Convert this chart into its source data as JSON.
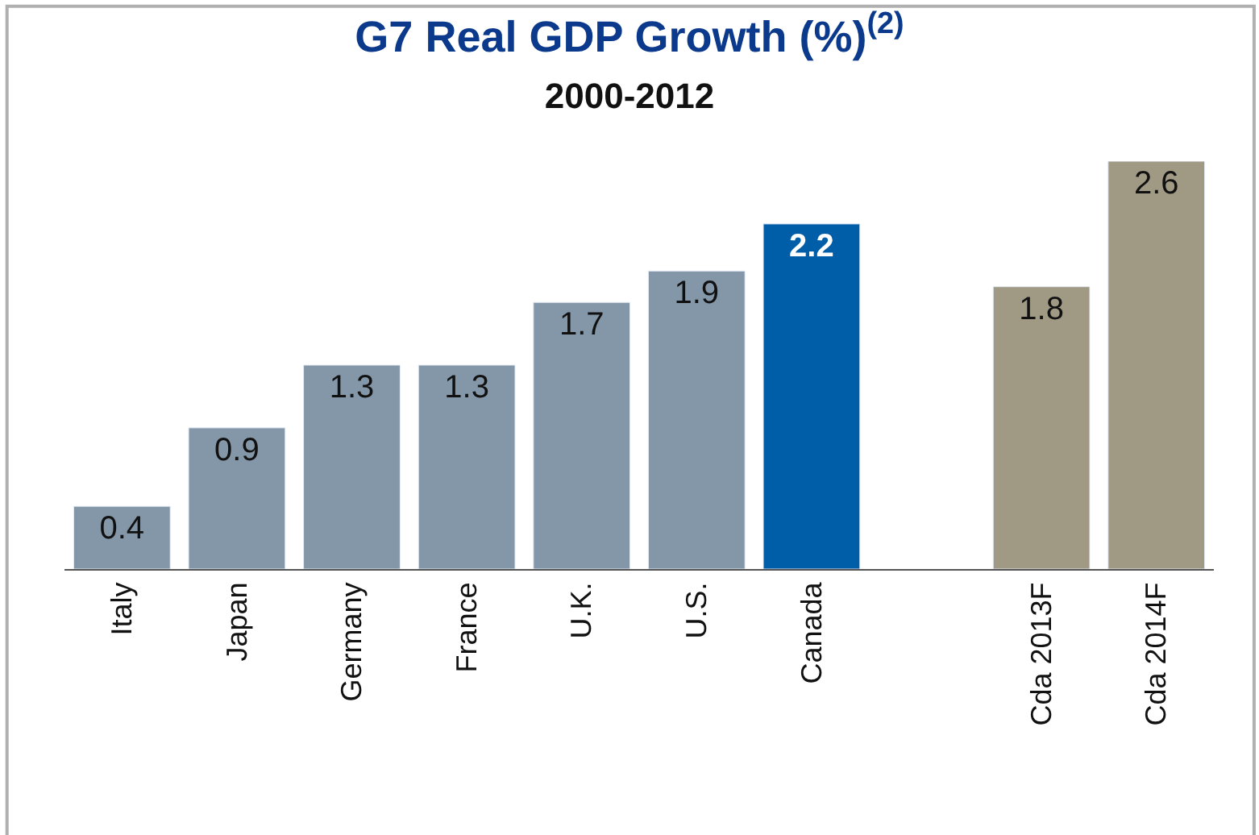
{
  "chart_data": {
    "type": "bar",
    "title": "G7 Real GDP Growth (%)$^{(2)}$",
    "subtitle": "2000-2012",
    "categories": [
      "Italy",
      "Japan",
      "Germany",
      "France",
      "U.K.",
      "U.S.",
      "Canada",
      null,
      "Cda 2013F",
      "Cda 2014F"
    ],
    "values": [
      0.4,
      0.9,
      1.3,
      1.3,
      1.7,
      1.9,
      2.2,
      null,
      1.8,
      2.6
    ],
    "colors": [
      "#8497a8",
      "#8497a8",
      "#8497a8",
      "#8497a8",
      "#8497a8",
      "#8497a8",
      "#005da8",
      null,
      "#a09a85",
      "#a09a85"
    ],
    "data_labels": true
  }
}
